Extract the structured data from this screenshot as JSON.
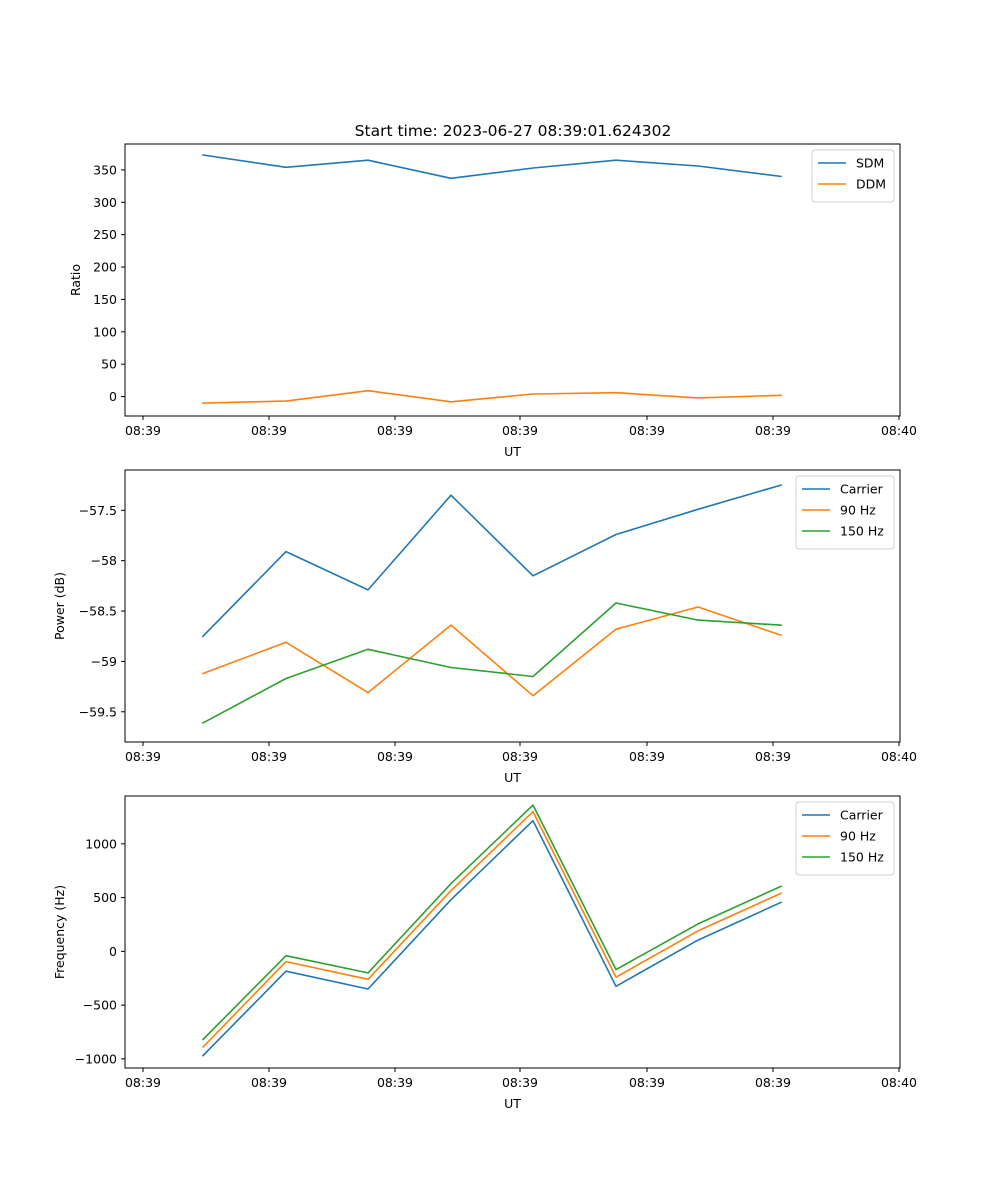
{
  "figure": {
    "title": "Start time: 2023-06-27 08:39:01.624302"
  },
  "colors": {
    "blue": "#1f77b4",
    "orange": "#ff7f0e",
    "green": "#2ca02c"
  },
  "chart_data": [
    {
      "type": "line",
      "title": "Start time: 2023-06-27 08:39:01.624302",
      "xlabel": "UT",
      "ylabel": "Ratio",
      "x": [
        "08:39",
        "08:39",
        "08:39",
        "08:39",
        "08:39",
        "08:39",
        "08:39",
        "08:39"
      ],
      "xticks": [
        "08:39",
        "08:39",
        "08:39",
        "08:39",
        "08:39",
        "08:39",
        "08:40"
      ],
      "yticks": [
        0,
        50,
        100,
        150,
        200,
        250,
        300,
        350
      ],
      "ylim": [
        -30,
        390
      ],
      "legend": "top-right",
      "grid": false,
      "series": [
        {
          "name": "SDM",
          "color": "#1f77b4",
          "values": [
            373,
            354,
            365,
            337,
            353,
            365,
            356,
            340
          ]
        },
        {
          "name": "DDM",
          "color": "#ff7f0e",
          "values": [
            -10,
            -7,
            9,
            -8,
            4,
            6,
            -2,
            2
          ]
        }
      ]
    },
    {
      "type": "line",
      "title": "",
      "xlabel": "UT",
      "ylabel": "Power (dB)",
      "x": [
        "08:39",
        "08:39",
        "08:39",
        "08:39",
        "08:39",
        "08:39",
        "08:39",
        "08:39"
      ],
      "xticks": [
        "08:39",
        "08:39",
        "08:39",
        "08:39",
        "08:39",
        "08:39",
        "08:40"
      ],
      "yticks": [
        -59.5,
        -59.0,
        -58.5,
        -58.0,
        -57.5
      ],
      "ylim": [
        -59.8,
        -57.1
      ],
      "legend": "top-right",
      "grid": false,
      "series": [
        {
          "name": "Carrier",
          "color": "#1f77b4",
          "values": [
            -58.75,
            -57.91,
            -58.29,
            -57.35,
            -58.15,
            -57.74,
            -57.49,
            -57.25
          ]
        },
        {
          "name": "90 Hz",
          "color": "#ff7f0e",
          "values": [
            -59.12,
            -58.81,
            -59.31,
            -58.64,
            -59.34,
            -58.68,
            -58.46,
            -58.74
          ]
        },
        {
          "name": "150 Hz",
          "color": "#2ca02c",
          "values": [
            -59.61,
            -59.17,
            -58.88,
            -59.06,
            -59.15,
            -58.42,
            -58.59,
            -58.64
          ]
        }
      ]
    },
    {
      "type": "line",
      "title": "",
      "xlabel": "UT",
      "ylabel": "Frequency (Hz)",
      "x": [
        "08:39",
        "08:39",
        "08:39",
        "08:39",
        "08:39",
        "08:39",
        "08:39",
        "08:39"
      ],
      "xticks": [
        "08:39",
        "08:39",
        "08:39",
        "08:39",
        "08:39",
        "08:39",
        "08:40"
      ],
      "yticks": [
        -1000,
        -500,
        0,
        500,
        1000
      ],
      "ylim": [
        -1085,
        1445
      ],
      "legend": "top-right",
      "grid": false,
      "series": [
        {
          "name": "Carrier",
          "color": "#1f77b4",
          "values": [
            -970,
            -185,
            -350,
            480,
            1215,
            -325,
            105,
            455
          ]
        },
        {
          "name": "90 Hz",
          "color": "#ff7f0e",
          "values": [
            -890,
            -95,
            -260,
            565,
            1300,
            -240,
            190,
            540
          ]
        },
        {
          "name": "150 Hz",
          "color": "#2ca02c",
          "values": [
            -820,
            -40,
            -200,
            630,
            1360,
            -170,
            255,
            605
          ]
        }
      ]
    }
  ]
}
